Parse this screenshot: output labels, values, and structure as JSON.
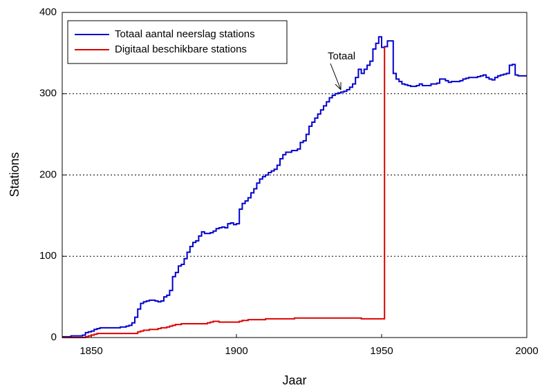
{
  "chart_data": {
    "type": "line",
    "step": true,
    "xlabel": "Jaar",
    "ylabel": "Stations",
    "annotation": "Totaal",
    "x": [
      1840,
      1841,
      1842,
      1843,
      1844,
      1845,
      1846,
      1847,
      1848,
      1849,
      1850,
      1851,
      1852,
      1853,
      1854,
      1855,
      1856,
      1857,
      1858,
      1859,
      1860,
      1861,
      1862,
      1863,
      1864,
      1865,
      1866,
      1867,
      1868,
      1869,
      1870,
      1871,
      1872,
      1873,
      1874,
      1875,
      1876,
      1877,
      1878,
      1879,
      1880,
      1881,
      1882,
      1883,
      1884,
      1885,
      1886,
      1887,
      1888,
      1889,
      1890,
      1891,
      1892,
      1893,
      1894,
      1895,
      1896,
      1897,
      1898,
      1899,
      1900,
      1901,
      1902,
      1903,
      1904,
      1905,
      1906,
      1907,
      1908,
      1909,
      1910,
      1911,
      1912,
      1913,
      1914,
      1915,
      1916,
      1917,
      1918,
      1919,
      1920,
      1921,
      1922,
      1923,
      1924,
      1925,
      1926,
      1927,
      1928,
      1929,
      1930,
      1931,
      1932,
      1933,
      1934,
      1935,
      1936,
      1937,
      1938,
      1939,
      1940,
      1941,
      1942,
      1943,
      1944,
      1945,
      1946,
      1947,
      1948,
      1949,
      1950,
      1951,
      1952,
      1953,
      1954,
      1955,
      1956,
      1957,
      1958,
      1959,
      1960,
      1961,
      1962,
      1963,
      1964,
      1965,
      1966,
      1967,
      1968,
      1969,
      1970,
      1971,
      1972,
      1973,
      1974,
      1975,
      1976,
      1977,
      1978,
      1979,
      1980,
      1981,
      1982,
      1983,
      1984,
      1985,
      1986,
      1987,
      1988,
      1989,
      1990,
      1991,
      1992,
      1993,
      1994,
      1995,
      1996,
      1997,
      1998,
      1999,
      2000
    ],
    "series": [
      {
        "name": "Totaal aantal neerslag stations",
        "color": "#0000cc",
        "values": [
          1,
          1,
          1,
          2,
          2,
          2,
          2,
          3,
          6,
          7,
          8,
          10,
          11,
          12,
          12,
          12,
          12,
          12,
          12,
          12,
          13,
          13,
          14,
          15,
          18,
          25,
          35,
          42,
          44,
          45,
          46,
          46,
          45,
          44,
          45,
          50,
          52,
          58,
          75,
          80,
          88,
          90,
          97,
          105,
          112,
          117,
          119,
          125,
          130,
          128,
          128,
          129,
          131,
          134,
          135,
          136,
          135,
          140,
          141,
          139,
          140,
          158,
          165,
          168,
          172,
          178,
          183,
          190,
          195,
          198,
          200,
          203,
          205,
          207,
          212,
          220,
          225,
          228,
          228,
          230,
          230,
          232,
          240,
          242,
          250,
          260,
          265,
          270,
          275,
          280,
          285,
          290,
          295,
          298,
          300,
          301,
          302,
          303,
          305,
          308,
          312,
          320,
          330,
          325,
          330,
          335,
          340,
          355,
          362,
          370,
          357,
          358,
          365,
          365,
          325,
          318,
          315,
          312,
          311,
          310,
          309,
          309,
          310,
          312,
          310,
          310,
          310,
          312,
          312,
          313,
          318,
          318,
          316,
          314,
          315,
          315,
          315,
          316,
          318,
          319,
          320,
          320,
          320,
          321,
          322,
          323,
          320,
          318,
          317,
          320,
          322,
          323,
          324,
          325,
          335,
          336,
          323,
          322,
          322,
          322,
          322
        ]
      },
      {
        "name": "Digitaal beschikbare stations",
        "color": "#dd0000",
        "values": [
          0,
          0,
          0,
          0,
          0,
          0,
          0,
          0,
          1,
          2,
          3,
          4,
          5,
          5,
          5,
          5,
          5,
          5,
          5,
          5,
          5,
          5,
          5,
          5,
          5,
          5,
          7,
          8,
          9,
          9,
          10,
          10,
          10,
          11,
          12,
          12,
          13,
          14,
          15,
          16,
          16,
          17,
          17,
          17,
          17,
          17,
          17,
          17,
          17,
          17,
          18,
          19,
          20,
          20,
          19,
          19,
          19,
          19,
          19,
          19,
          19,
          20,
          21,
          21,
          22,
          22,
          22,
          22,
          22,
          22,
          23,
          23,
          23,
          23,
          23,
          23,
          23,
          23,
          23,
          23,
          24,
          24,
          24,
          24,
          24,
          24,
          24,
          24,
          24,
          24,
          24,
          24,
          24,
          24,
          24,
          24,
          24,
          24,
          24,
          24,
          24,
          24,
          24,
          23,
          23,
          23,
          23,
          23,
          23,
          23,
          23,
          358,
          null,
          null,
          null,
          null,
          null,
          null,
          null,
          null,
          null,
          null,
          null,
          null,
          null,
          null,
          null,
          null,
          null,
          null,
          null,
          null,
          null,
          null,
          null,
          null,
          null,
          null,
          null,
          null,
          null,
          null,
          null,
          null,
          null,
          null,
          null,
          null,
          null,
          null,
          null,
          null,
          null,
          null,
          null,
          null,
          null,
          null,
          null,
          null,
          null
        ]
      }
    ],
    "xlim": [
      1840,
      2000
    ],
    "xticks": [
      1850,
      1900,
      1950,
      2000
    ],
    "ylim": [
      0,
      400
    ],
    "yticks": [
      0,
      100,
      200,
      300,
      400
    ],
    "grid": true,
    "legend": "upper left"
  }
}
